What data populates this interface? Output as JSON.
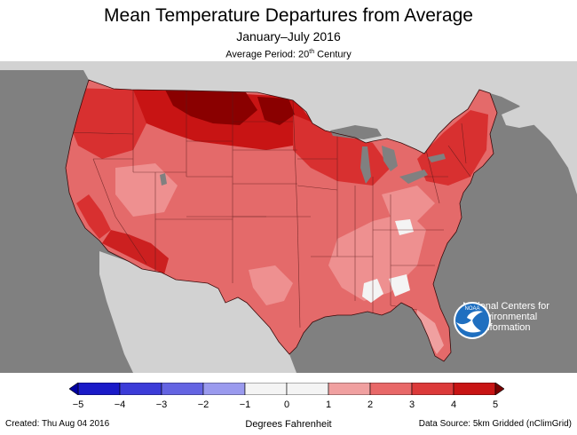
{
  "header": {
    "title": "Mean Temperature Departures from Average",
    "subtitle": "January–July 2016",
    "period_prefix": "Average Period: 20",
    "period_sup": "th",
    "period_suffix": " Century"
  },
  "logo": {
    "name": "NOAA",
    "org_line1": "National Centers for",
    "org_line2": "Environmental",
    "org_line3": "Information"
  },
  "legend": {
    "units": "Degrees Fahrenheit",
    "tick_labels": [
      "−5",
      "−4",
      "−3",
      "−2",
      "−1",
      "0",
      "1",
      "2",
      "3",
      "4",
      "5"
    ],
    "tick_values": [
      -5,
      -4,
      -3,
      -2,
      -1,
      0,
      1,
      2,
      3,
      4,
      5
    ],
    "bins": [
      {
        "from": -5,
        "to": -4,
        "color": "#1a1ac8"
      },
      {
        "from": -4,
        "to": -3,
        "color": "#3c3cd8"
      },
      {
        "from": -3,
        "to": -2,
        "color": "#6464e2"
      },
      {
        "from": -2,
        "to": -1,
        "color": "#9a9aee"
      },
      {
        "from": -1,
        "to": 0,
        "color": "#f4f4f4"
      },
      {
        "from": 0,
        "to": 1,
        "color": "#f4f4f4"
      },
      {
        "from": 1,
        "to": 2,
        "color": "#f0a0a0"
      },
      {
        "from": 2,
        "to": 3,
        "color": "#e86868"
      },
      {
        "from": 3,
        "to": 4,
        "color": "#dc3a3a"
      },
      {
        "from": 4,
        "to": 5,
        "color": "#c81414"
      }
    ],
    "under_color": "#0000a0",
    "over_color": "#780000"
  },
  "footer": {
    "created": "Created: Thu Aug 04 2016",
    "source": "Data Source: 5km Gridded (nClimGrid)"
  },
  "colors": {
    "background_land": "#d2d2d2",
    "water": "#808080",
    "conus_base": "#e46a6a"
  }
}
